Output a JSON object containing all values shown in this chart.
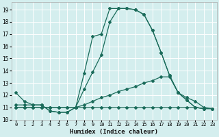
{
  "xlabel": "Humidex (Indice chaleur)",
  "bg_color": "#d4eeee",
  "grid_color": "#ffffff",
  "line_color": "#1a6b5a",
  "xlim": [
    -0.5,
    23.5
  ],
  "ylim": [
    10,
    19.6
  ],
  "yticks": [
    10,
    11,
    12,
    13,
    14,
    15,
    16,
    17,
    18,
    19
  ],
  "xticks": [
    0,
    1,
    2,
    3,
    4,
    5,
    6,
    7,
    8,
    9,
    10,
    11,
    12,
    13,
    14,
    15,
    16,
    17,
    18,
    19,
    20,
    21,
    22,
    23
  ],
  "lines": [
    {
      "x": [
        0,
        1,
        2,
        3,
        4,
        5,
        6,
        7,
        8,
        9,
        10,
        11,
        12,
        13,
        14,
        15,
        16,
        17,
        18,
        19,
        20,
        21,
        22,
        23
      ],
      "y": [
        12.2,
        11.5,
        11.2,
        11.2,
        10.7,
        10.6,
        10.6,
        11.0,
        13.8,
        16.8,
        17.0,
        19.1,
        19.1,
        19.1,
        19.0,
        18.6,
        17.3,
        15.5,
        13.6,
        12.2,
        11.6,
        11.0,
        10.9,
        10.9
      ]
    },
    {
      "x": [
        0,
        1,
        2,
        3,
        4,
        5,
        6,
        7,
        8,
        9,
        10,
        11,
        12,
        13,
        14,
        15,
        16,
        17,
        18,
        19,
        20,
        21,
        22,
        23
      ],
      "y": [
        11.2,
        11.2,
        11.2,
        11.2,
        10.7,
        10.6,
        10.6,
        11.0,
        12.5,
        13.9,
        15.3,
        18.0,
        19.1,
        19.1,
        19.0,
        18.6,
        17.3,
        15.5,
        13.6,
        12.2,
        11.6,
        11.0,
        10.9,
        10.9
      ]
    },
    {
      "x": [
        0,
        1,
        2,
        3,
        4,
        5,
        6,
        7,
        8,
        9,
        10,
        11,
        12,
        13,
        14,
        15,
        16,
        17,
        18,
        19,
        20,
        21,
        22,
        23
      ],
      "y": [
        11.0,
        11.0,
        11.0,
        11.0,
        11.0,
        11.0,
        11.0,
        11.0,
        11.2,
        11.5,
        11.8,
        12.0,
        12.3,
        12.5,
        12.7,
        13.0,
        13.2,
        13.5,
        13.5,
        12.2,
        11.8,
        11.5,
        11.0,
        10.9
      ]
    },
    {
      "x": [
        0,
        1,
        2,
        3,
        4,
        5,
        6,
        7,
        8,
        9,
        10,
        11,
        12,
        13,
        14,
        15,
        16,
        17,
        18,
        19,
        20,
        21,
        22,
        23
      ],
      "y": [
        11.0,
        11.0,
        11.0,
        11.0,
        11.0,
        11.0,
        11.0,
        11.0,
        11.0,
        11.0,
        11.0,
        11.0,
        11.0,
        11.0,
        11.0,
        11.0,
        11.0,
        11.0,
        11.0,
        11.0,
        11.0,
        11.0,
        10.9,
        10.9
      ]
    }
  ]
}
